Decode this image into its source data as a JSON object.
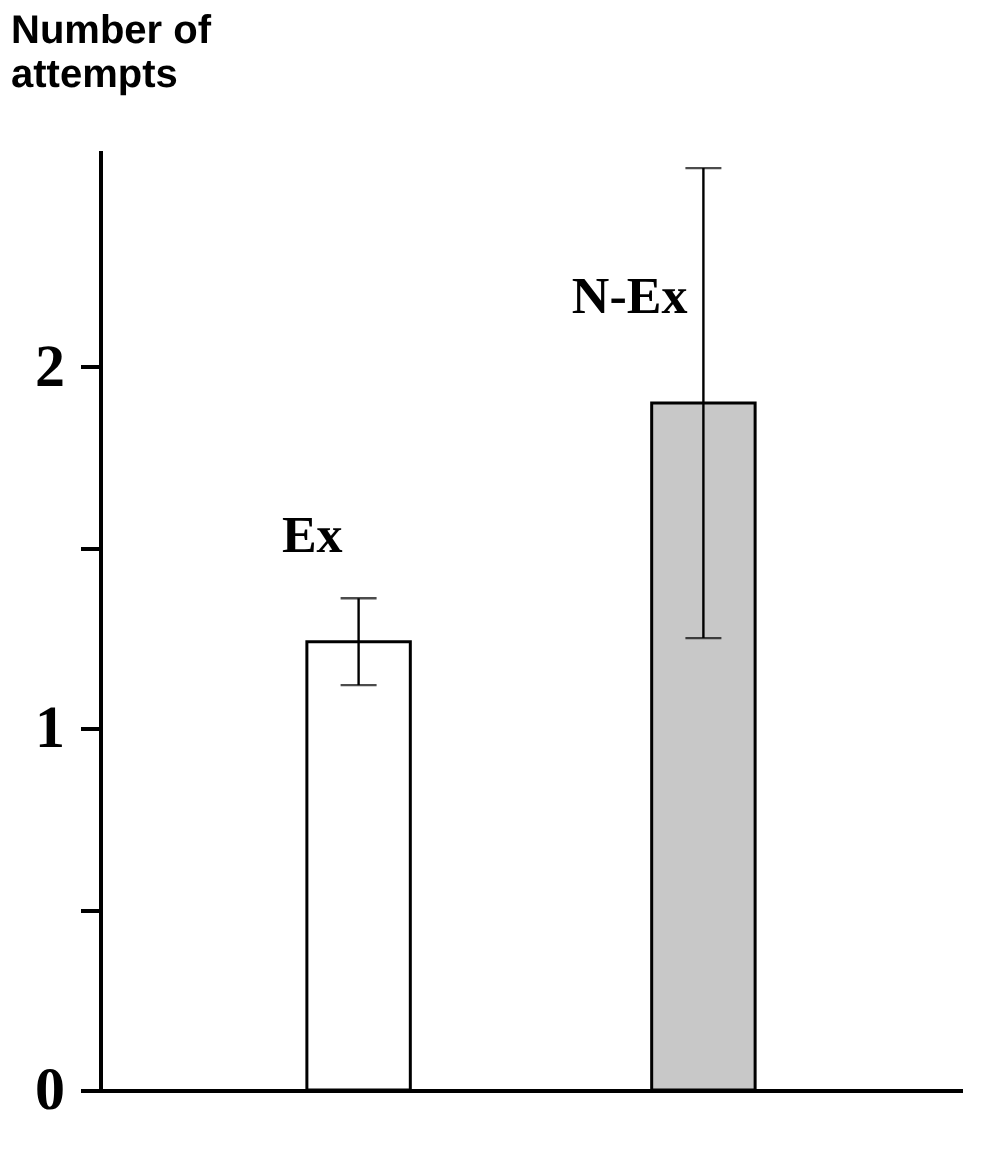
{
  "chart_data": {
    "type": "bar",
    "ylabel": "Number of attempts",
    "categories": [
      "Ex",
      "N-Ex"
    ],
    "values": [
      1.24,
      1.9
    ],
    "errors": [
      0.12,
      0.65
    ],
    "colors": [
      "#ffffff",
      "#c8c8c8"
    ],
    "ylim": [
      0,
      2.6
    ],
    "yticks": [
      0,
      {
        "value": 0.5,
        "label": null
      },
      1,
      {
        "value": 1.5,
        "label": null
      },
      2
    ],
    "grid": false,
    "tick_labels": "y"
  }
}
